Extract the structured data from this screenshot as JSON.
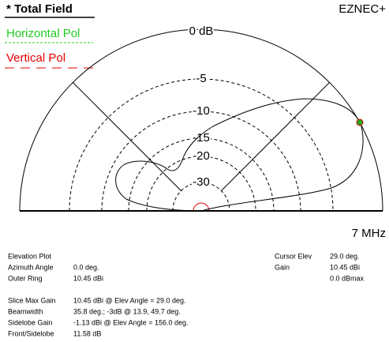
{
  "header": {
    "title": "* Total Field",
    "program": "EZNEC+"
  },
  "legend": [
    "Horizontal Pol",
    "Vertical Pol"
  ],
  "ring_labels": [
    "0 dB",
    "-5",
    "-10",
    "-15",
    "-20",
    "-30"
  ],
  "frequency": "7 MHz",
  "plot_type": "Elevation Plot",
  "settings": [
    [
      "Azimuth Angle",
      "0.0 deg."
    ],
    [
      "Outer Ring",
      "10.45 dBi"
    ]
  ],
  "cursor": [
    [
      "Cursor Elev",
      "29.0 deg."
    ],
    [
      "Gain",
      "10.45 dBi"
    ]
  ],
  "cursor_extra": "0.0 dBmax",
  "slice": [
    [
      "Slice Max Gain",
      "10.45 dBi @ Elev Angle = 29.0 deg."
    ],
    [
      "Beamwidth",
      "35.8 deg.; -3dB @ 13.9, 49.7 deg."
    ],
    [
      "Sidelobe Gain",
      "-1.13 dBi @ Elev Angle = 156.0 deg."
    ],
    [
      "Front/Sidelobe",
      "11.58 dB"
    ]
  ]
}
